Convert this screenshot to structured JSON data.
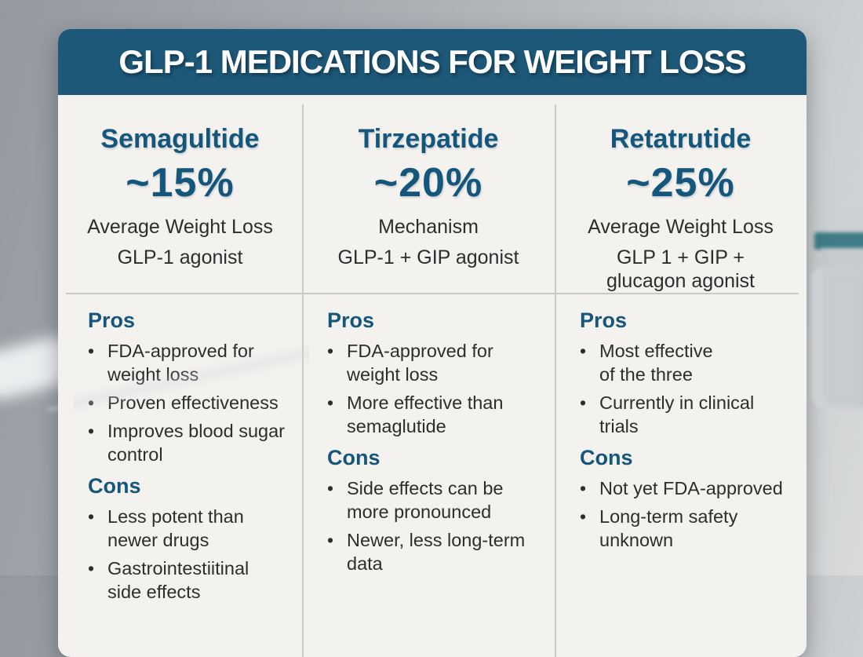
{
  "header": {
    "title": "GLP-1 MEDICATIONS FOR WEIGHT LOSS"
  },
  "columns": [
    {
      "name": "Semagultide",
      "stat": "~15%",
      "stat_label": "Average Weight Loss",
      "mechanism": "GLP-1 agonist",
      "pros_label": "Pros",
      "pros": [
        "FDA-approved for\nweight loss",
        "Proven effectiveness",
        "Improves blood sugar\ncontrol"
      ],
      "cons_label": "Cons",
      "cons": [
        "Less potent than\nnewer drugs",
        "Gastrointestiitinal\nside effects"
      ]
    },
    {
      "name": "Tirzepatide",
      "stat": "~20%",
      "stat_label": "Mechanism",
      "mechanism": "GLP-1 + GIP agonist",
      "pros_label": "Pros",
      "pros": [
        "FDA-approved for\nweight loss",
        "More effective than\nsemaglutide"
      ],
      "cons_label": "Cons",
      "cons": [
        "Side effects can be\nmore pronounced",
        "Newer, less long-term\ndata"
      ]
    },
    {
      "name": "Retatrutide",
      "stat": "~25%",
      "stat_label": "Average Weight Loss",
      "mechanism": "GLP 1 + GIP +\nglucagon agonist",
      "pros_label": "Pros",
      "pros": [
        "Most effective\nof the three",
        "Currently in clinical\ntrials"
      ],
      "cons_label": "Cons",
      "cons": [
        "Not yet FDA-approved",
        "Long-term safety\nunknown"
      ]
    }
  ],
  "bullet_glyph": "•",
  "colors": {
    "header_bg": "#1d5878",
    "accent_text": "#15567c",
    "body_text": "#2d2d2d",
    "card_bg": "#f4f2ef",
    "divider": "#c9c9c6",
    "vial_band": "#3f7c86"
  }
}
